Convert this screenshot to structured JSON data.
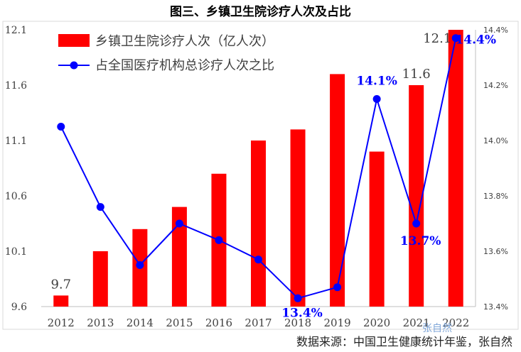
{
  "chart_data": {
    "type": "bar+line",
    "title": "图三、乡镇卫生院诊疗人次及占比",
    "categories": [
      "2012",
      "2013",
      "2014",
      "2015",
      "2016",
      "2017",
      "2018",
      "2019",
      "2020",
      "2021",
      "2022"
    ],
    "series": [
      {
        "name": "乡镇卫生院诊疗人次（亿人次）",
        "type": "bar",
        "axis": "left",
        "color": "#ff0000",
        "values": [
          9.7,
          10.1,
          10.3,
          10.5,
          10.8,
          11.1,
          11.2,
          11.7,
          11.0,
          11.6,
          12.1
        ]
      },
      {
        "name": "占全国医疗机构总诊疗人次之比",
        "type": "line",
        "axis": "right",
        "color": "#0000ff",
        "unit": "%",
        "values": [
          14.05,
          13.76,
          13.55,
          13.7,
          13.64,
          13.57,
          13.43,
          13.47,
          14.15,
          13.7,
          14.37
        ]
      }
    ],
    "y_left": {
      "min": 9.6,
      "max": 12.1,
      "ticks": [
        "9.6",
        "10.1",
        "10.6",
        "11.1",
        "11.6",
        "12.1"
      ]
    },
    "y_right": {
      "min": 13.4,
      "max": 14.4,
      "ticks": [
        "13.4%",
        "13.6%",
        "13.8%",
        "14.0%",
        "14.2%",
        "14.4%"
      ]
    },
    "bar_labels": [
      {
        "index": 0,
        "text": "9.7"
      },
      {
        "index": 9,
        "text": "11.6"
      },
      {
        "index": 10,
        "text": "12.1"
      }
    ],
    "line_labels": [
      {
        "index": 6,
        "text": "13.4%"
      },
      {
        "index": 8,
        "text": "14.1%"
      },
      {
        "index": 9,
        "text": "13.7%"
      },
      {
        "index": 10,
        "text": "14.4%"
      }
    ],
    "grid": false,
    "legend": "top-left"
  },
  "source": "数据来源：中国卫生健康统计年鉴，张自然",
  "watermark": "张自然"
}
